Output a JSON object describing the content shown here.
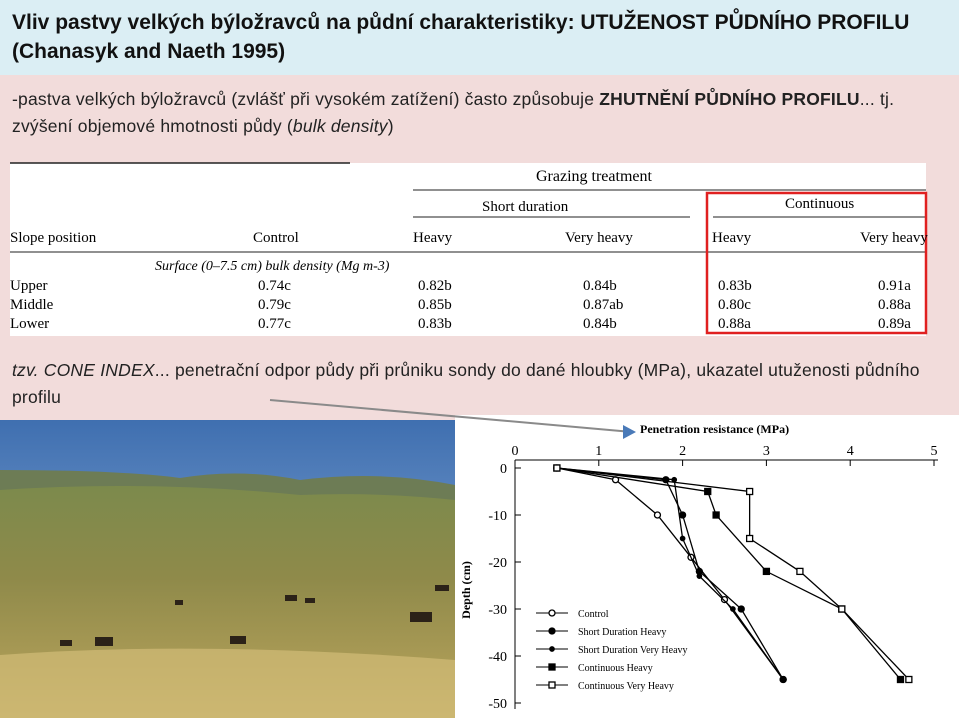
{
  "header": {
    "title": "Vliv pastvy velkých býložravců na půdní charakteristiky: UTUŽENOST PŮDNÍHO PROFILU (Chanasyk and Naeth 1995)"
  },
  "intro": {
    "text1": "-pastva velkých býložravců (zvlášť při vysokém zatížení) často způsobuje ",
    "bold": "ZHUTNĚNÍ PŮDNÍHO PROFILU",
    "text2": "... tj. zvýšení objemové hmotnosti půdy (",
    "italic": "bulk density",
    "text3": ")"
  },
  "table": {
    "title": "Grazing treatment",
    "groups": [
      "Short duration",
      "Continuous"
    ],
    "columns": [
      "Slope position",
      "Control",
      "Heavy",
      "Very heavy",
      "Heavy",
      "Very heavy"
    ],
    "subheading": "Surface (0–7.5 cm) bulk density (Mg m-3)",
    "rows": [
      [
        "Upper",
        "0.74c",
        "0.82b",
        "0.84b",
        "0.83b",
        "0.91a"
      ],
      [
        "Middle",
        "0.79c",
        "0.85b",
        "0.87ab",
        "0.80c",
        "0.88a"
      ],
      [
        "Lower",
        "0.77c",
        "0.83b",
        "0.84b",
        "0.88a",
        "0.89a"
      ]
    ]
  },
  "cone": {
    "italic": "tzv. CONE INDEX",
    "text": "... penetrační odpor půdy při průniku sondy do dané hloubky (MPa), ukazatel utuženosti půdního profilu"
  },
  "chart_data": {
    "type": "line",
    "x_label": "Penetration resistance (MPa)",
    "y_label": "Depth (cm)",
    "xlim": [
      0,
      5
    ],
    "xticks": [
      0,
      1,
      2,
      3,
      4,
      5
    ],
    "ylim": [
      -50,
      0
    ],
    "yticks": [
      0,
      -10,
      -20,
      -30,
      -40,
      -50
    ],
    "series": [
      {
        "name": "Control",
        "color": "#000000",
        "marker": "open-circle",
        "x": [
          0.5,
          1.2,
          1.7,
          2.1,
          2.5,
          3.2
        ],
        "values": [
          0,
          -2.5,
          -10,
          -19,
          -28,
          -45
        ]
      },
      {
        "name": "Short Duration Heavy",
        "color": "#000000",
        "marker": "filled-circle",
        "x": [
          0.5,
          1.8,
          2.0,
          2.2,
          2.7,
          3.2
        ],
        "values": [
          0,
          -2.5,
          -10,
          -22,
          -30,
          -45
        ]
      },
      {
        "name": "Short Duration Very Heavy",
        "color": "#000000",
        "marker": "small-dot",
        "x": [
          0.5,
          1.9,
          2.0,
          2.2,
          2.6,
          3.2
        ],
        "values": [
          0,
          -2.5,
          -15,
          -23,
          -30,
          -45
        ]
      },
      {
        "name": "Continuous Heavy",
        "color": "#000000",
        "marker": "filled-square",
        "x": [
          0.5,
          2.3,
          2.4,
          3.0,
          3.9,
          4.6
        ],
        "values": [
          0,
          -5,
          -10,
          -22,
          -30,
          -45
        ]
      },
      {
        "name": "Continuous Very Heavy",
        "color": "#000000",
        "marker": "open-square",
        "x": [
          0.5,
          2.8,
          2.8,
          3.4,
          3.9,
          4.7
        ],
        "values": [
          0,
          -5,
          -15,
          -22,
          -30,
          -45
        ]
      }
    ]
  }
}
